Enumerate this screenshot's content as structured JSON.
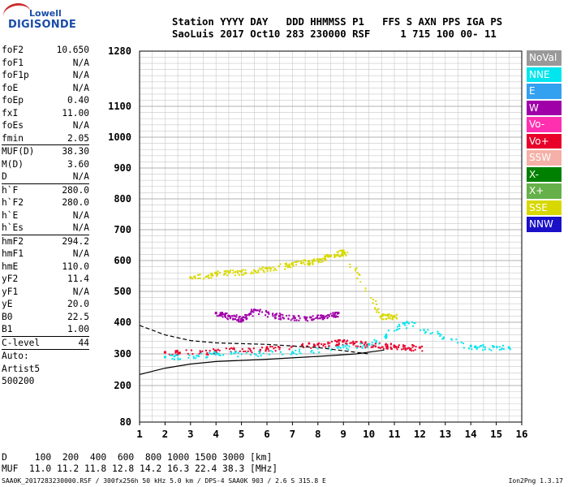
{
  "logo": {
    "line1": "Lowell",
    "line2": "DIGISONDE"
  },
  "header": {
    "labels": "Station YYYY DAY   DDD HHMMSS P1   FFS S AXN PPS IGA PS",
    "values": "SaoLuis 2017 Oct10 283 230000 RSF     1 715 100 00- 11"
  },
  "params": [
    {
      "name": "foF2",
      "value": "10.650"
    },
    {
      "name": "foF1",
      "value": "N/A"
    },
    {
      "name": "foF1p",
      "value": "N/A"
    },
    {
      "name": "foE",
      "value": "N/A"
    },
    {
      "name": "foEp",
      "value": "0.40"
    },
    {
      "name": "fxI",
      "value": "11.00"
    },
    {
      "name": "foEs",
      "value": "N/A"
    },
    {
      "name": "fmin",
      "value": "2.05"
    },
    {
      "sep": true
    },
    {
      "name": "MUF(D)",
      "value": "38.30"
    },
    {
      "name": "M(D)",
      "value": "3.60"
    },
    {
      "name": "D",
      "value": "N/A"
    },
    {
      "sep": true
    },
    {
      "name": "h`F",
      "value": "280.0"
    },
    {
      "name": "h`F2",
      "value": "280.0"
    },
    {
      "name": "h`E",
      "value": "N/A"
    },
    {
      "name": "h`Es",
      "value": "N/A"
    },
    {
      "sep": true
    },
    {
      "name": "hmF2",
      "value": "294.2"
    },
    {
      "name": "hmF1",
      "value": "N/A"
    },
    {
      "name": "hmE",
      "value": "110.0"
    },
    {
      "name": "yF2",
      "value": "11.4"
    },
    {
      "name": "yF1",
      "value": "N/A"
    },
    {
      "name": "yE",
      "value": "20.0"
    },
    {
      "name": "B0",
      "value": "22.5"
    },
    {
      "name": "B1",
      "value": "1.00"
    },
    {
      "sep": true
    },
    {
      "name": "C-level",
      "value": "44"
    },
    {
      "sep": true
    },
    {
      "name": "Auto:",
      "value": ""
    },
    {
      "name": "Artist5",
      "value": ""
    },
    {
      "name": "500200",
      "value": ""
    }
  ],
  "legend": [
    {
      "label": "NoVal",
      "color": "#999999"
    },
    {
      "label": "NNE",
      "color": "#00e5ee"
    },
    {
      "label": "E",
      "color": "#33a0f0"
    },
    {
      "label": "W",
      "color": "#a000a8"
    },
    {
      "label": "Vo-",
      "color": "#ff30b0"
    },
    {
      "label": "Vo+",
      "color": "#e8002a"
    },
    {
      "label": "SSW",
      "color": "#f5b0a8"
    },
    {
      "label": "X-",
      "color": "#008000"
    },
    {
      "label": "X+",
      "color": "#66b04a"
    },
    {
      "label": "SSE",
      "color": "#d8d800"
    },
    {
      "label": "NNW",
      "color": "#1a10c8"
    }
  ],
  "bottom": {
    "d_row": "D     100  200  400  600  800 1000 1500 3000 [km]",
    "muf_row": "MUF  11.0 11.2 11.8 12.8 14.2 16.3 22.4 38.3 [MHz]"
  },
  "footer": "SAA0K_2017283230000.RSF / 300fx256h 50 kHz 5.0 km / DPS-4 SAA0K 903 / 2.6 S 315.8 E",
  "version": "Ion2Png 1.3.17",
  "chart_data": {
    "type": "scatter",
    "title": "",
    "xlabel": "",
    "ylabel": "",
    "xlim": [
      1,
      16
    ],
    "ylim": [
      80,
      1280
    ],
    "yscale": "reciprocal-like (height km)",
    "x_ticks": [
      1,
      2,
      3,
      4,
      5,
      6,
      7,
      8,
      9,
      10,
      11,
      12,
      13,
      14,
      15,
      16
    ],
    "y_ticks": [
      80,
      200,
      300,
      400,
      500,
      600,
      700,
      800,
      900,
      1000,
      1100,
      1280
    ],
    "grid": true,
    "series": [
      {
        "name": "W",
        "color": "#a000a8",
        "points": [
          [
            4.0,
            430
          ],
          [
            4.5,
            420
          ],
          [
            5.0,
            410
          ],
          [
            5.5,
            440
          ],
          [
            6.5,
            420
          ],
          [
            7.5,
            415
          ],
          [
            8.2,
            420
          ],
          [
            8.8,
            430
          ]
        ]
      },
      {
        "name": "SSE",
        "color": "#d8d800",
        "points": [
          [
            3.0,
            545
          ],
          [
            4.0,
            560
          ],
          [
            5.0,
            565
          ],
          [
            6.0,
            575
          ],
          [
            7.0,
            590
          ],
          [
            7.8,
            600
          ],
          [
            8.5,
            615
          ],
          [
            9.0,
            630
          ],
          [
            10.5,
            420
          ],
          [
            11.0,
            420
          ]
        ]
      },
      {
        "name": "Vo+",
        "color": "#e8002a",
        "points": [
          [
            2.0,
            305
          ],
          [
            4.0,
            310
          ],
          [
            6.0,
            318
          ],
          [
            8.0,
            330
          ],
          [
            9.0,
            340
          ],
          [
            10.0,
            330
          ],
          [
            11.0,
            325
          ],
          [
            12.0,
            320
          ]
        ]
      },
      {
        "name": "NNE",
        "color": "#00e5ee",
        "points": [
          [
            2.0,
            290
          ],
          [
            4.0,
            300
          ],
          [
            7.0,
            305
          ],
          [
            10.0,
            330
          ],
          [
            11.5,
            400
          ],
          [
            14.0,
            325
          ],
          [
            15.5,
            320
          ]
        ]
      }
    ],
    "profile_curves": [
      {
        "name": "dashed",
        "style": "dashed",
        "points": [
          [
            1.0,
            390
          ],
          [
            2.0,
            360
          ],
          [
            3.0,
            342
          ],
          [
            4.0,
            335
          ],
          [
            6.0,
            330
          ],
          [
            8.0,
            320
          ],
          [
            9.0,
            310
          ],
          [
            10.0,
            300
          ]
        ]
      },
      {
        "name": "solid",
        "style": "solid",
        "points": [
          [
            1.0,
            235
          ],
          [
            2.0,
            255
          ],
          [
            3.0,
            268
          ],
          [
            4.0,
            276
          ],
          [
            6.0,
            283
          ],
          [
            8.0,
            292
          ],
          [
            9.5,
            300
          ],
          [
            10.6,
            312
          ]
        ]
      }
    ]
  }
}
